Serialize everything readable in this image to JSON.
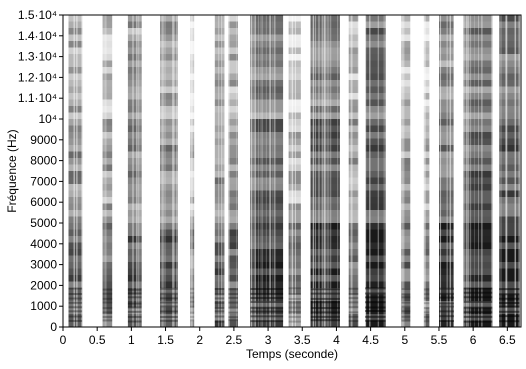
{
  "chart_data": {
    "type": "heatmap",
    "title": "",
    "xlabel": "Temps (seconde)",
    "ylabel": "Fréquence (Hz)",
    "xlim": [
      0,
      6.7
    ],
    "ylim": [
      0,
      15000
    ],
    "grid": false,
    "colormap": "grayscale (white = low energy, black = high energy)",
    "x_ticks": [
      {
        "value": 0,
        "label": "0"
      },
      {
        "value": 0.5,
        "label": "0.5"
      },
      {
        "value": 1,
        "label": "1"
      },
      {
        "value": 1.5,
        "label": "1.5"
      },
      {
        "value": 2,
        "label": "2"
      },
      {
        "value": 2.5,
        "label": "2.5"
      },
      {
        "value": 3,
        "label": "3"
      },
      {
        "value": 3.5,
        "label": "3.5"
      },
      {
        "value": 4,
        "label": "4"
      },
      {
        "value": 4.5,
        "label": "4.5"
      },
      {
        "value": 5,
        "label": "5"
      },
      {
        "value": 5.5,
        "label": "5.5"
      },
      {
        "value": 6,
        "label": "6"
      },
      {
        "value": 6.5,
        "label": "6.5"
      }
    ],
    "y_ticks": [
      {
        "value": 0,
        "label": "0"
      },
      {
        "value": 1000,
        "label": "1000"
      },
      {
        "value": 2000,
        "label": "2000"
      },
      {
        "value": 3000,
        "label": "3000"
      },
      {
        "value": 4000,
        "label": "4000"
      },
      {
        "value": 5000,
        "label": "5000"
      },
      {
        "value": 6000,
        "label": "6000"
      },
      {
        "value": 7000,
        "label": "7000"
      },
      {
        "value": 8000,
        "label": "8000"
      },
      {
        "value": 9000,
        "label": "9000"
      },
      {
        "value": 10000,
        "label": "10⁴"
      },
      {
        "value": 11000,
        "label": "1.1·10⁴"
      },
      {
        "value": 12000,
        "label": "1.2·10⁴"
      },
      {
        "value": 13000,
        "label": "1.3·10⁴"
      },
      {
        "value": 14000,
        "label": "1.4·10⁴"
      },
      {
        "value": 15000,
        "label": "1.5·10⁴"
      }
    ],
    "segments": [
      {
        "start": 0.08,
        "end": 0.28,
        "intensity": 0.55
      },
      {
        "start": 0.58,
        "end": 0.72,
        "intensity": 0.45
      },
      {
        "start": 0.95,
        "end": 1.15,
        "intensity": 0.6
      },
      {
        "start": 1.42,
        "end": 1.68,
        "intensity": 0.6
      },
      {
        "start": 1.86,
        "end": 1.92,
        "intensity": 0.3
      },
      {
        "start": 2.22,
        "end": 2.36,
        "intensity": 0.55
      },
      {
        "start": 2.42,
        "end": 2.56,
        "intensity": 0.5
      },
      {
        "start": 2.74,
        "end": 3.22,
        "intensity": 0.75
      },
      {
        "start": 3.3,
        "end": 3.48,
        "intensity": 0.35
      },
      {
        "start": 3.62,
        "end": 4.05,
        "intensity": 0.8
      },
      {
        "start": 4.18,
        "end": 4.32,
        "intensity": 0.45
      },
      {
        "start": 4.42,
        "end": 4.72,
        "intensity": 0.85
      },
      {
        "start": 4.95,
        "end": 5.08,
        "intensity": 0.45
      },
      {
        "start": 5.28,
        "end": 5.36,
        "intensity": 0.35
      },
      {
        "start": 5.5,
        "end": 5.72,
        "intensity": 0.7
      },
      {
        "start": 5.86,
        "end": 6.28,
        "intensity": 0.8
      },
      {
        "start": 6.38,
        "end": 6.68,
        "intensity": 0.85
      }
    ]
  }
}
